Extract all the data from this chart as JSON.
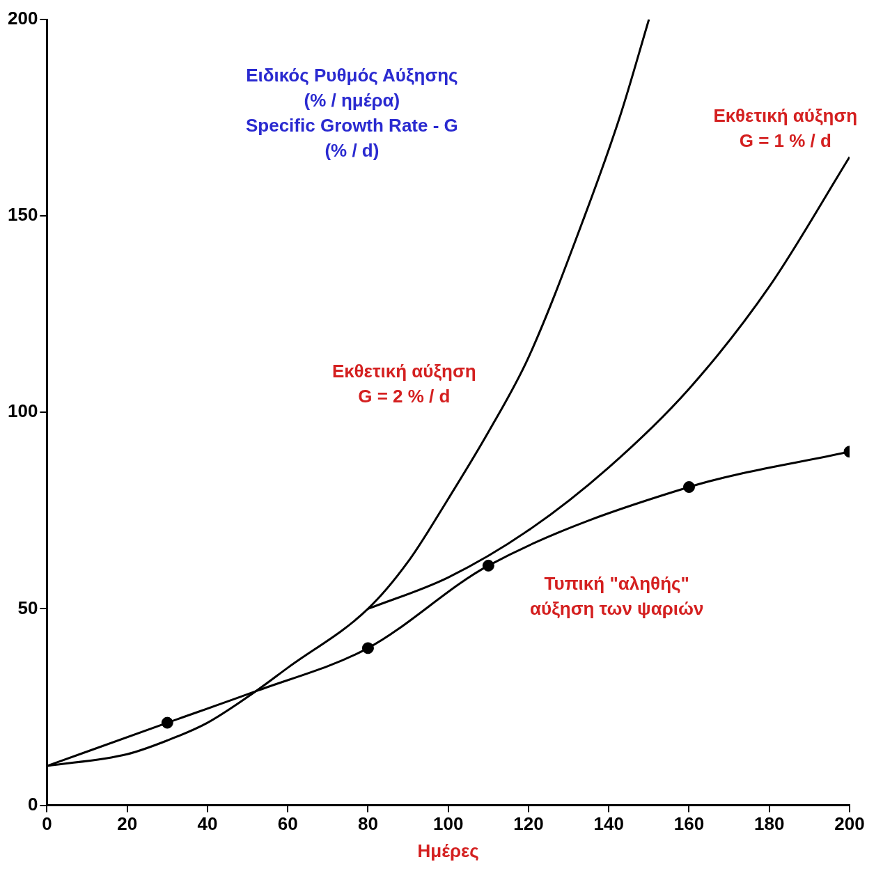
{
  "chart_data": {
    "type": "line",
    "xlabel": "Ημέρες",
    "xlim": [
      0,
      200
    ],
    "xticks": [
      0,
      20,
      40,
      60,
      80,
      100,
      120,
      140,
      160,
      180,
      200
    ],
    "ylim": [
      0,
      200
    ],
    "yticks": [
      0,
      50,
      100,
      150,
      200
    ],
    "grid": false,
    "legend": false,
    "series": [
      {
        "color": "#000000",
        "marker": "none",
        "x": [
          0,
          20,
          30,
          40,
          52,
          60,
          80,
          90,
          100,
          110,
          120,
          134,
          143,
          150
        ],
        "values": [
          10,
          13,
          16.5,
          21,
          29,
          35,
          50,
          62,
          78,
          95,
          114,
          150,
          176,
          200
        ]
      },
      {
        "color": "#000000",
        "marker": "none",
        "x": [
          80,
          100,
          120,
          140,
          160,
          180,
          200
        ],
        "values": [
          50,
          58,
          70,
          86,
          106,
          132,
          165
        ]
      },
      {
        "color": "#000000",
        "marker": "none",
        "x": [
          0,
          30,
          52,
          80,
          110,
          160,
          200
        ],
        "values": [
          10,
          21,
          29,
          40,
          61,
          81,
          90
        ]
      },
      {
        "type": "scatter",
        "color": "#000000",
        "marker": "circle",
        "x": [
          30,
          80,
          110,
          160,
          200
        ],
        "values": [
          21,
          40,
          61,
          81,
          90
        ]
      }
    ],
    "annotations": [
      "Ειδικός Ρυθμός Αύξησης\n(% / ημέρα)\nSpecific Growth Rate - G\n(% / d)",
      "Εκθετική αύξηση\nG = 2 % / d",
      "Εκθετική αύξηση\nG = 1 % / d",
      "Τυπική \"αληθής\"\nαύξηση των ψαριών"
    ]
  }
}
